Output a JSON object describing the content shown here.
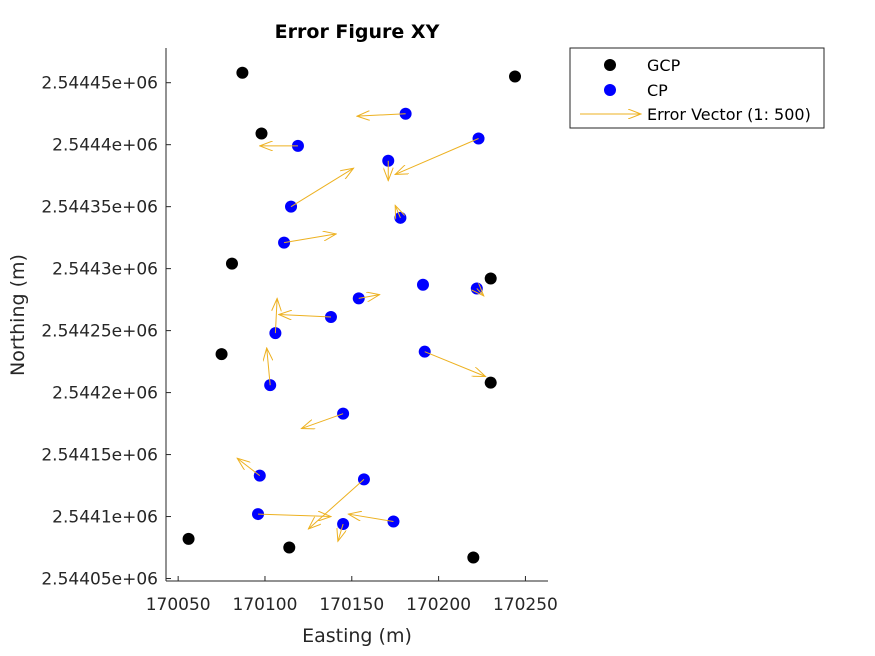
{
  "chart_data": {
    "type": "scatter",
    "title": "Error Figure XY",
    "xlabel": "Easting (m)",
    "ylabel": "Northing (m)",
    "xlim": [
      170043,
      170263
    ],
    "ylim": [
      2544048,
      2544478
    ],
    "x_ticks": [
      170050,
      170100,
      170150,
      170200,
      170250
    ],
    "x_tick_labels": [
      "170050",
      "170100",
      "170150",
      "170200",
      "170250"
    ],
    "y_ticks": [
      2544050,
      2544100,
      2544150,
      2544200,
      2544250,
      2544300,
      2544350,
      2544400,
      2544450
    ],
    "y_tick_labels": [
      "2.54405e+06",
      "2.5441e+06",
      "2.54415e+06",
      "2.5442e+06",
      "2.54425e+06",
      "2.5443e+06",
      "2.54435e+06",
      "2.5444e+06",
      "2.54445e+06"
    ],
    "grid": false,
    "legend_position": "outside-top-right",
    "colors": {
      "gcp": "#000000",
      "cp": "#0000ff",
      "vector": "#edb120",
      "axis": "#262626"
    },
    "series": [
      {
        "name": "GCP",
        "marker": "filled-circle",
        "points": [
          [
            170087,
            2544458
          ],
          [
            170244,
            2544455
          ],
          [
            170098,
            2544409
          ],
          [
            170081,
            2544304
          ],
          [
            170230,
            2544292
          ],
          [
            170075,
            2544231
          ],
          [
            170230,
            2544208
          ],
          [
            170056,
            2544082
          ],
          [
            170114,
            2544075
          ],
          [
            170220,
            2544067
          ]
        ]
      },
      {
        "name": "CP",
        "marker": "filled-circle",
        "points": [
          [
            170181,
            2544425
          ],
          [
            170119,
            2544399
          ],
          [
            170223,
            2544405
          ],
          [
            170171,
            2544387
          ],
          [
            170115,
            2544350
          ],
          [
            170178,
            2544341
          ],
          [
            170111,
            2544321
          ],
          [
            170191,
            2544287
          ],
          [
            170222,
            2544284
          ],
          [
            170154,
            2544276
          ],
          [
            170138,
            2544261
          ],
          [
            170106,
            2544248
          ],
          [
            170192,
            2544233
          ],
          [
            170103,
            2544206
          ],
          [
            170145,
            2544183
          ],
          [
            170097,
            2544133
          ],
          [
            170157,
            2544130
          ],
          [
            170096,
            2544102
          ],
          [
            170174,
            2544096
          ],
          [
            170145,
            2544094
          ]
        ]
      },
      {
        "name": "Error Vector (1: 500)",
        "marker": "arrow",
        "vectors": [
          [
            170181,
            2544425,
            -28,
            -2
          ],
          [
            170119,
            2544399,
            -22,
            0
          ],
          [
            170223,
            2544405,
            -48,
            -29
          ],
          [
            170171,
            2544387,
            0,
            -16
          ],
          [
            170115,
            2544350,
            36,
            31
          ],
          [
            170178,
            2544341,
            -3,
            10
          ],
          [
            170111,
            2544321,
            30,
            7
          ],
          [
            170191,
            2544287,
            0,
            0
          ],
          [
            170222,
            2544284,
            4,
            -6
          ],
          [
            170154,
            2544276,
            12,
            3
          ],
          [
            170138,
            2544261,
            -30,
            2
          ],
          [
            170106,
            2544248,
            1,
            28
          ],
          [
            170192,
            2544233,
            35,
            -20
          ],
          [
            170103,
            2544206,
            -2,
            30
          ],
          [
            170145,
            2544183,
            -24,
            -12
          ],
          [
            170097,
            2544133,
            -13,
            14
          ],
          [
            170157,
            2544130,
            -32,
            -40
          ],
          [
            170096,
            2544102,
            42,
            -2
          ],
          [
            170174,
            2544096,
            -26,
            6
          ],
          [
            170145,
            2544094,
            -3,
            -14
          ]
        ]
      }
    ]
  }
}
